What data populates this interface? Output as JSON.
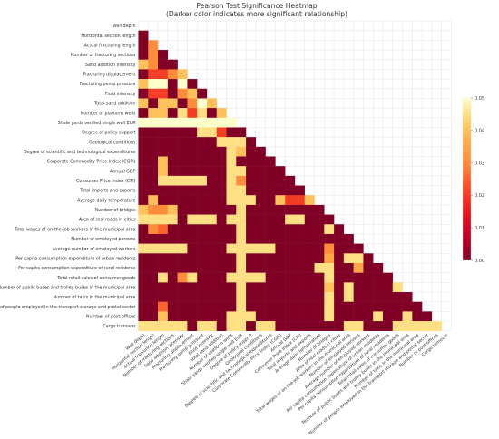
{
  "chart_data": {
    "type": "heatmap",
    "title": "Pearson Test Significance Heatmap",
    "subtitle": "(Darker color indicates more significant relationship)",
    "lower_triangle_only": true,
    "grid": true,
    "labels": [
      "Well depth",
      "Horizontal section length",
      "Actual fracturing length",
      "Number of fracturing sections",
      "Sand addition intensity",
      "Fracturing displacement",
      "Fracturing pump pressure",
      "Fluid intensity",
      "Total sand addition",
      "Number of platform wells",
      "Shale yards verified single well EUR",
      "Degree of policy support",
      "Geological conditions",
      "Degree of scientific and technological expenditures",
      "Corporate Commodity Price Index (CGPI)",
      "Annual GDP",
      "Consumer Price Index (CPI)",
      "Total imports and exports",
      "Average daily temperature",
      "Number of bridges",
      "Area of real roads in cities",
      "Total wages of on-the-job workers in the municipal area",
      "Number of employed persons",
      "Average number of employed workers",
      "Per capita consumption expenditure of urban residents",
      "Per capita consumption expenditure of rural residents",
      "Total retail sales of consumer goods",
      "Number of public buses and trolley buses in the municipal area",
      "Number of taxis in the municipal area",
      "Number of people employed in the transport storage and postal sector",
      "Number of post offices",
      "Cargo turnover"
    ],
    "colorbar": {
      "min": 0,
      "max": 0.05,
      "ticks": [
        "0.00",
        "0.01",
        "0.02",
        "0.03",
        "0.04",
        "0.05"
      ],
      "colormap": "YlOrRd_r"
    },
    "significant_threshold": 0.005,
    "cells_above_threshold": [
      [
        2,
        1,
        0.03
      ],
      [
        3,
        1,
        0.03
      ],
      [
        4,
        0,
        0.04
      ],
      [
        4,
        1,
        0.03
      ],
      [
        5,
        1,
        0.02
      ],
      [
        5,
        2,
        0.02
      ],
      [
        5,
        3,
        0.03
      ],
      [
        5,
        4,
        0.04
      ],
      [
        6,
        0,
        0.04
      ],
      [
        6,
        1,
        0.05
      ],
      [
        6,
        2,
        0.05
      ],
      [
        6,
        4,
        0.05
      ],
      [
        7,
        1,
        0.02
      ],
      [
        7,
        2,
        0.02
      ],
      [
        7,
        4,
        0.03
      ],
      [
        7,
        5,
        0.04
      ],
      [
        8,
        0,
        0.04
      ],
      [
        8,
        2,
        0.04
      ],
      [
        8,
        3,
        0.04
      ],
      [
        8,
        5,
        0.03
      ],
      [
        8,
        6,
        0.05
      ],
      [
        8,
        7,
        0.04
      ],
      [
        9,
        1,
        0.04
      ],
      [
        9,
        2,
        0.04
      ],
      [
        9,
        4,
        0.045
      ],
      [
        9,
        5,
        0.02
      ],
      [
        9,
        6,
        0.045
      ],
      [
        9,
        8,
        0.04
      ],
      [
        10,
        0,
        0.05
      ],
      [
        10,
        1,
        0.05
      ],
      [
        10,
        2,
        0.05
      ],
      [
        10,
        3,
        0.05
      ],
      [
        10,
        4,
        0.05
      ],
      [
        10,
        5,
        0.05
      ],
      [
        10,
        6,
        0.05
      ],
      [
        10,
        7,
        0.05
      ],
      [
        10,
        8,
        0.05
      ],
      [
        10,
        9,
        0.05
      ],
      [
        11,
        6,
        0.045
      ],
      [
        11,
        7,
        0.045
      ],
      [
        11,
        8,
        0.02
      ],
      [
        12,
        8,
        0.045
      ],
      [
        12,
        9,
        0.045
      ],
      [
        12,
        10,
        0.045
      ],
      [
        13,
        9,
        0.045
      ],
      [
        13,
        10,
        0.04
      ],
      [
        14,
        2,
        0.04
      ],
      [
        14,
        9,
        0.045
      ],
      [
        15,
        2,
        0.04
      ],
      [
        15,
        9,
        0.045
      ],
      [
        15,
        10,
        0.045
      ],
      [
        16,
        2,
        0.045
      ],
      [
        16,
        3,
        0.045
      ],
      [
        16,
        4,
        0.045
      ],
      [
        16,
        5,
        0.045
      ],
      [
        16,
        6,
        0.045
      ],
      [
        16,
        9,
        0.045
      ],
      [
        16,
        10,
        0.03
      ],
      [
        17,
        9,
        0.045
      ],
      [
        17,
        10,
        0.045
      ],
      [
        18,
        1,
        0.04
      ],
      [
        18,
        9,
        0.045
      ],
      [
        18,
        10,
        0.045
      ],
      [
        18,
        11,
        0.045
      ],
      [
        18,
        14,
        0.04
      ],
      [
        18,
        15,
        0.02
      ],
      [
        18,
        16,
        0.02
      ],
      [
        18,
        17,
        0.04
      ],
      [
        19,
        0,
        0.04
      ],
      [
        19,
        1,
        0.03
      ],
      [
        19,
        2,
        0.03
      ],
      [
        19,
        3,
        0.04
      ],
      [
        19,
        10,
        0.045
      ],
      [
        20,
        0,
        0.045
      ],
      [
        20,
        1,
        0.045
      ],
      [
        20,
        2,
        0.045
      ],
      [
        20,
        3,
        0.045
      ],
      [
        20,
        5,
        0.045
      ],
      [
        20,
        6,
        0.045
      ],
      [
        20,
        7,
        0.045
      ],
      [
        20,
        9,
        0.045
      ],
      [
        20,
        10,
        0.045
      ],
      [
        20,
        15,
        0.045
      ],
      [
        20,
        16,
        0.045
      ],
      [
        21,
        1,
        0.03
      ],
      [
        21,
        2,
        0.025
      ],
      [
        21,
        10,
        0.045
      ],
      [
        21,
        19,
        0.045
      ],
      [
        22,
        10,
        0.045
      ],
      [
        23,
        0,
        0.045
      ],
      [
        23,
        1,
        0.045
      ],
      [
        23,
        2,
        0.045
      ],
      [
        23,
        3,
        0.045
      ],
      [
        23,
        4,
        0.045
      ],
      [
        23,
        9,
        0.045
      ],
      [
        23,
        10,
        0.045
      ],
      [
        23,
        11,
        0.045
      ],
      [
        23,
        12,
        0.045
      ],
      [
        23,
        13,
        0.045
      ],
      [
        23,
        19,
        0.03
      ],
      [
        24,
        10,
        0.045
      ],
      [
        24,
        19,
        0.035
      ],
      [
        24,
        21,
        0.045
      ],
      [
        24,
        22,
        0.045
      ],
      [
        25,
        10,
        0.045
      ],
      [
        25,
        18,
        0.045
      ],
      [
        25,
        19,
        0.045
      ],
      [
        25,
        22,
        0.035
      ],
      [
        26,
        2,
        0.045
      ],
      [
        26,
        4,
        0.03
      ],
      [
        26,
        5,
        0.045
      ],
      [
        26,
        9,
        0.045
      ],
      [
        26,
        10,
        0.045
      ],
      [
        26,
        11,
        0.045
      ],
      [
        26,
        12,
        0.045
      ],
      [
        26,
        19,
        0.045
      ],
      [
        27,
        10,
        0.045
      ],
      [
        27,
        19,
        0.04
      ],
      [
        27,
        21,
        0.045
      ],
      [
        27,
        26,
        0.045
      ],
      [
        28,
        10,
        0.045
      ],
      [
        28,
        19,
        0.045
      ],
      [
        28,
        21,
        0.045
      ],
      [
        29,
        2,
        0.025
      ],
      [
        29,
        10,
        0.045
      ],
      [
        29,
        19,
        0.045
      ],
      [
        30,
        2,
        0.04
      ],
      [
        30,
        9,
        0.045
      ],
      [
        30,
        10,
        0.045
      ],
      [
        30,
        11,
        0.045
      ],
      [
        30,
        19,
        0.045
      ],
      [
        30,
        24,
        0.045
      ],
      [
        30,
        27,
        0.045
      ],
      [
        31,
        0,
        0.045
      ],
      [
        31,
        1,
        0.045
      ],
      [
        31,
        2,
        0.045
      ],
      [
        31,
        3,
        0.045
      ],
      [
        31,
        4,
        0.045
      ],
      [
        31,
        6,
        0.045
      ],
      [
        31,
        7,
        0.045
      ],
      [
        31,
        9,
        0.045
      ],
      [
        31,
        10,
        0.045
      ],
      [
        31,
        12,
        0.045
      ],
      [
        31,
        13,
        0.045
      ],
      [
        31,
        21,
        0.045
      ],
      [
        31,
        22,
        0.045
      ],
      [
        31,
        26,
        0.045
      ],
      [
        31,
        27,
        0.045
      ],
      [
        31,
        28,
        0.045
      ],
      [
        31,
        29,
        0.045
      ],
      [
        31,
        30,
        0.045
      ]
    ]
  }
}
